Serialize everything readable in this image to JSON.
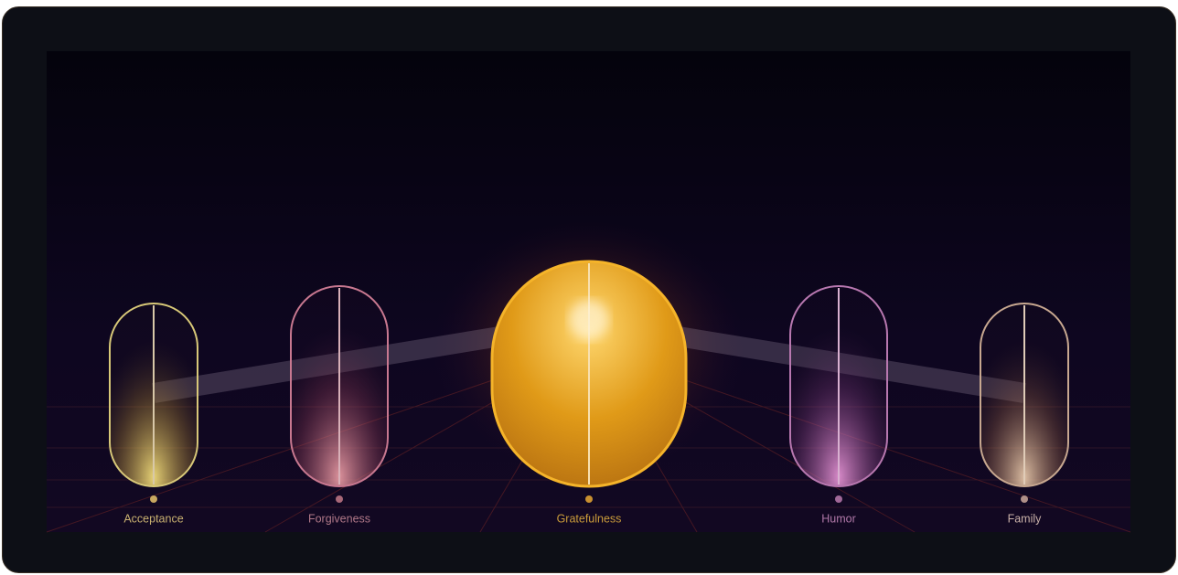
{
  "items": [
    {
      "label": "Acceptance"
    },
    {
      "label": "Forgiveness"
    },
    {
      "label": "Gratefulness"
    },
    {
      "label": "Humor"
    },
    {
      "label": "Family"
    }
  ]
}
